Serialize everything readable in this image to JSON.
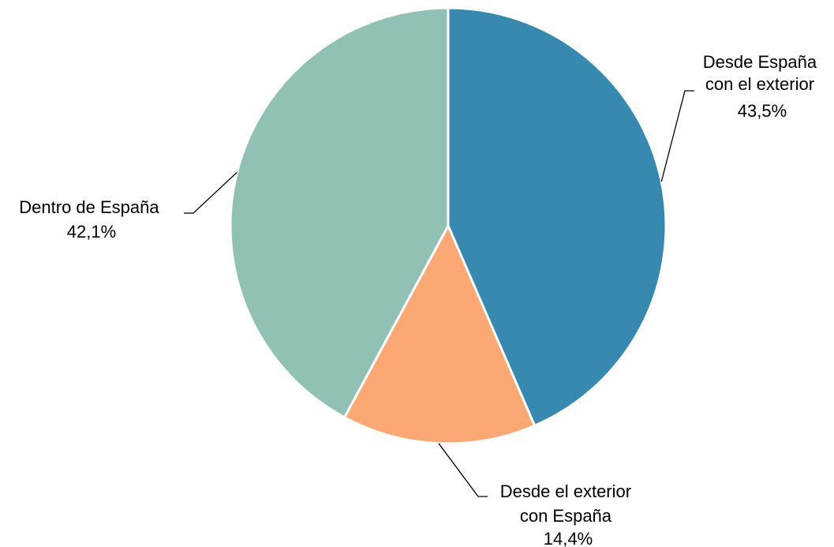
{
  "chart_data": {
    "type": "pie",
    "title": "",
    "start_angle_deg": 0,
    "direction": "clockwise",
    "legend": "none",
    "slices": [
      {
        "key": "exterior",
        "label_lines": [
          "Desde España",
          "con el exterior"
        ],
        "value": 43.5,
        "value_label": "43,5%",
        "color": "#3889b0"
      },
      {
        "key": "hacia",
        "label_lines": [
          "Desde el exterior",
          "con España"
        ],
        "value": 14.4,
        "value_label": "14,4%",
        "color": "#fca874"
      },
      {
        "key": "dentro",
        "label_lines": [
          "Dentro de España"
        ],
        "value": 42.1,
        "value_label": "42,1%",
        "color": "#91c1b4"
      }
    ]
  }
}
